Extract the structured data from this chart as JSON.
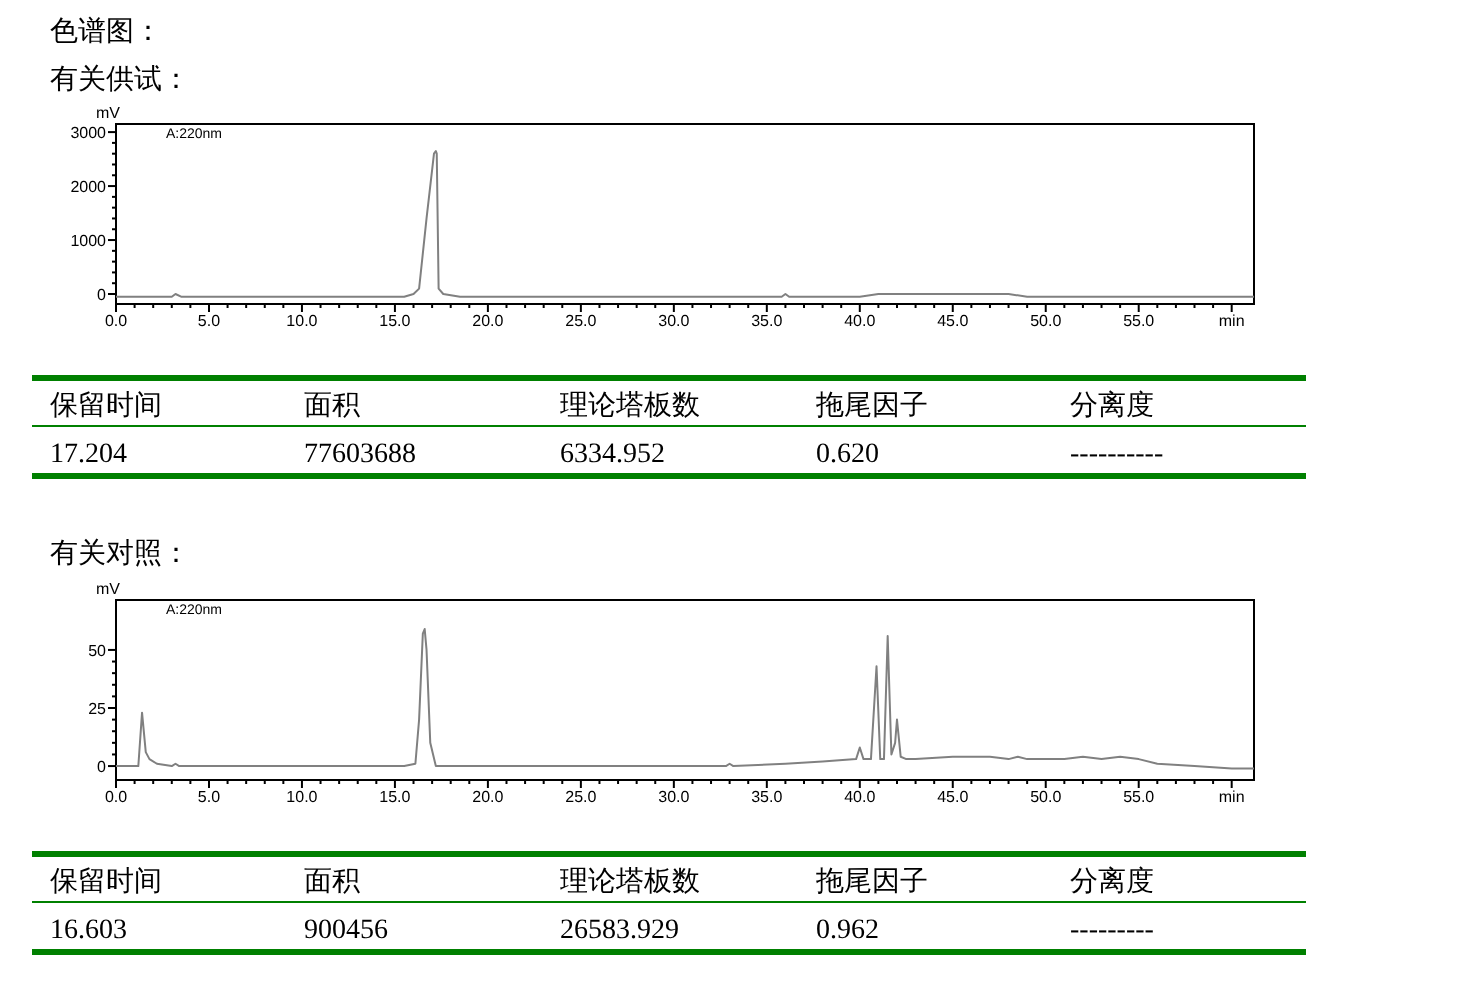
{
  "chart_data": [
    {
      "type": "line",
      "title": "色谱图：",
      "subtitle": "有关供试：",
      "ylabel": "mV",
      "xlim": [
        0,
        61.2
      ],
      "ylim": [
        -185,
        3150
      ],
      "xticks": [
        {
          "value": 0,
          "label": "0.0"
        },
        {
          "value": 5,
          "label": "5.0"
        },
        {
          "value": 10,
          "label": "10.0"
        },
        {
          "value": 15,
          "label": "15.0"
        },
        {
          "value": 20,
          "label": "20.0"
        },
        {
          "value": 25,
          "label": "25.0"
        },
        {
          "value": 30,
          "label": "30.0"
        },
        {
          "value": 35,
          "label": "35.0"
        },
        {
          "value": 40,
          "label": "40.0"
        },
        {
          "value": 45,
          "label": "45.0"
        },
        {
          "value": 50,
          "label": "50.0"
        },
        {
          "value": 55,
          "label": "55.0"
        },
        {
          "value": 60,
          "label": "min"
        }
      ],
      "yticks": [
        0,
        1000,
        2000,
        3000
      ],
      "grid": false,
      "marker": "none",
      "line_style": "solid",
      "series": [
        {
          "color": "#808080",
          "x": [
            0,
            3.0,
            3.2,
            3.5,
            9.8,
            15.5,
            16.0,
            16.3,
            16.7,
            17.0,
            17.1,
            17.2,
            17.25,
            17.35,
            17.6,
            18.5,
            20,
            35.8,
            36.0,
            36.2,
            40.0,
            41.0,
            45.0,
            48.0,
            49.0,
            55.0,
            60.0,
            61.2
          ],
          "values": [
            -50,
            -50,
            0,
            -50,
            -50,
            -50,
            0,
            100,
            1400,
            2300,
            2600,
            2650,
            2600,
            100,
            0,
            -50,
            -50,
            -50,
            0,
            -50,
            -50,
            0,
            0,
            0,
            -50,
            -50,
            -50,
            -50
          ]
        }
      ],
      "annotations": [
        "A:220nm",
        "保留时间",
        "面积",
        "理论塔板数",
        "拖尾因子",
        "分离度",
        "17.204",
        "77603688",
        "6334.952",
        "0.620",
        "----------"
      ]
    },
    {
      "type": "line",
      "title": "有关对照：",
      "ylabel": "mV",
      "xlim": [
        0,
        61.2
      ],
      "ylim": [
        -6,
        71.5
      ],
      "xticks": [
        {
          "value": 0,
          "label": "0.0"
        },
        {
          "value": 5,
          "label": "5.0"
        },
        {
          "value": 10,
          "label": "10.0"
        },
        {
          "value": 15,
          "label": "15.0"
        },
        {
          "value": 20,
          "label": "20.0"
        },
        {
          "value": 25,
          "label": "25.0"
        },
        {
          "value": 30,
          "label": "30.0"
        },
        {
          "value": 35,
          "label": "35.0"
        },
        {
          "value": 40,
          "label": "40.0"
        },
        {
          "value": 45,
          "label": "45.0"
        },
        {
          "value": 50,
          "label": "50.0"
        },
        {
          "value": 55,
          "label": "55.0"
        },
        {
          "value": 60,
          "label": "min"
        }
      ],
      "yticks": [
        0,
        25,
        50
      ],
      "grid": false,
      "marker": "none",
      "line_style": "solid",
      "series": [
        {
          "color": "#808080",
          "x": [
            0,
            1.2,
            1.4,
            1.6,
            1.8,
            2.2,
            3.0,
            3.2,
            3.4,
            15.5,
            16.1,
            16.3,
            16.5,
            16.6,
            16.7,
            16.9,
            17.2,
            18,
            32.8,
            33.0,
            33.2,
            36,
            38,
            39.8,
            40.0,
            40.2,
            40.6,
            40.9,
            41.1,
            41.3,
            41.5,
            41.7,
            41.9,
            42.0,
            42.2,
            42.5,
            43,
            45,
            47,
            48,
            48.5,
            49,
            51,
            52,
            53,
            54,
            55,
            56,
            58,
            60,
            61.2
          ],
          "values": [
            0,
            0,
            23,
            6,
            3,
            1,
            0,
            1,
            0,
            0,
            1,
            20,
            57,
            59,
            50,
            10,
            0,
            0,
            0,
            1,
            0,
            1,
            2,
            3,
            8,
            3,
            3,
            43,
            3,
            3,
            56,
            5,
            10,
            20,
            4,
            3,
            3,
            4,
            4,
            3,
            4,
            3,
            3,
            4,
            3,
            4,
            3,
            1,
            0,
            -1,
            -1
          ]
        }
      ],
      "annotations": [
        "A:220nm",
        "保留时间",
        "面积",
        "理论塔板数",
        "拖尾因子",
        "分离度",
        "16.603",
        "900456",
        "26583.929",
        "0.962",
        "---------"
      ]
    }
  ]
}
